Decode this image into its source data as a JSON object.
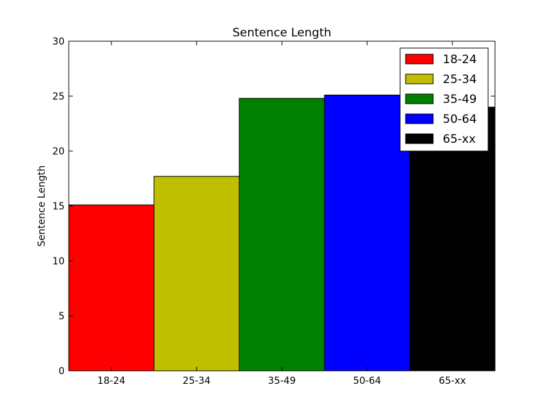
{
  "chart_data": {
    "type": "bar",
    "title": "Sentence Length",
    "xlabel": "",
    "ylabel": "Sentence Length",
    "ylim": [
      0,
      30
    ],
    "yticks": [
      0,
      5,
      10,
      15,
      20,
      25,
      30
    ],
    "categories": [
      "18-24",
      "25-34",
      "35-49",
      "50-64",
      "65-xx"
    ],
    "values": [
      15.1,
      17.7,
      24.8,
      25.1,
      24.0
    ],
    "colors": [
      "#ff0000",
      "#bfbf00",
      "#008000",
      "#0000ff",
      "#000000"
    ],
    "legend": {
      "placement": "top-right",
      "entries": [
        "18-24",
        "25-34",
        "35-49",
        "50-64",
        "65-xx"
      ]
    },
    "grid": false
  }
}
